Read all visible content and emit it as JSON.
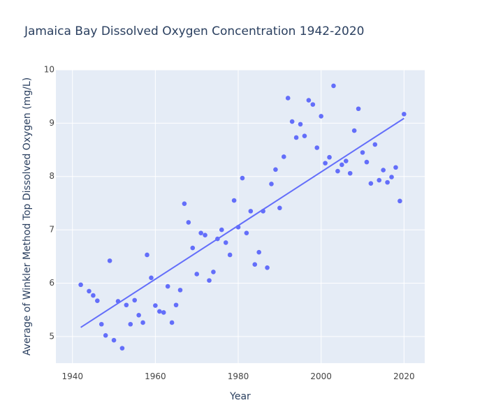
{
  "chart_data": {
    "type": "scatter",
    "title": "Jamaica Bay Dissolved Oxygen Concentration 1942-2020",
    "xlabel": "Year",
    "ylabel": "Average of Winkler Method Top Dissolved Oxygen (mg/L)",
    "xlim": [
      1936,
      2025
    ],
    "ylim": [
      4.5,
      10
    ],
    "xticks": [
      1940,
      1960,
      1980,
      2000,
      2020
    ],
    "yticks": [
      5,
      6,
      7,
      8,
      9,
      10
    ],
    "grid": true,
    "legend": "none",
    "colors": {
      "marker": "#636efa",
      "trendline": "#636efa",
      "plot_bg": "#e5ecf6",
      "grid": "#ffffff"
    },
    "series": [
      {
        "type": "scatter",
        "points": [
          [
            1942,
            5.97
          ],
          [
            1944,
            5.85
          ],
          [
            1945,
            5.77
          ],
          [
            1946,
            5.67
          ],
          [
            1947,
            5.23
          ],
          [
            1948,
            5.02
          ],
          [
            1949,
            6.42
          ],
          [
            1950,
            4.93
          ],
          [
            1951,
            5.66
          ],
          [
            1952,
            4.78
          ],
          [
            1953,
            5.59
          ],
          [
            1954,
            5.23
          ],
          [
            1955,
            5.68
          ],
          [
            1956,
            5.4
          ],
          [
            1957,
            5.26
          ],
          [
            1958,
            6.53
          ],
          [
            1959,
            6.1
          ],
          [
            1960,
            5.58
          ],
          [
            1961,
            5.47
          ],
          [
            1962,
            5.45
          ],
          [
            1963,
            5.94
          ],
          [
            1964,
            5.26
          ],
          [
            1965,
            5.59
          ],
          [
            1966,
            5.87
          ],
          [
            1967,
            7.49
          ],
          [
            1968,
            7.14
          ],
          [
            1969,
            6.66
          ],
          [
            1970,
            6.17
          ],
          [
            1971,
            6.94
          ],
          [
            1972,
            6.9
          ],
          [
            1973,
            6.05
          ],
          [
            1974,
            6.21
          ],
          [
            1975,
            6.83
          ],
          [
            1976,
            7.0
          ],
          [
            1977,
            6.76
          ],
          [
            1978,
            6.53
          ],
          [
            1979,
            7.55
          ],
          [
            1980,
            7.05
          ],
          [
            1981,
            7.97
          ],
          [
            1982,
            6.94
          ],
          [
            1983,
            7.35
          ],
          [
            1984,
            6.35
          ],
          [
            1985,
            6.58
          ],
          [
            1986,
            7.35
          ],
          [
            1987,
            6.29
          ],
          [
            1988,
            7.86
          ],
          [
            1989,
            8.13
          ],
          [
            1990,
            7.41
          ],
          [
            1991,
            8.37
          ],
          [
            1992,
            9.47
          ],
          [
            1993,
            9.03
          ],
          [
            1994,
            8.73
          ],
          [
            1995,
            8.98
          ],
          [
            1996,
            8.76
          ],
          [
            1997,
            9.43
          ],
          [
            1998,
            9.35
          ],
          [
            1999,
            8.54
          ],
          [
            2000,
            9.13
          ],
          [
            2001,
            8.25
          ],
          [
            2002,
            8.36
          ],
          [
            2003,
            9.7
          ],
          [
            2004,
            8.1
          ],
          [
            2005,
            8.22
          ],
          [
            2006,
            8.29
          ],
          [
            2007,
            8.06
          ],
          [
            2008,
            8.86
          ],
          [
            2009,
            9.27
          ],
          [
            2010,
            8.45
          ],
          [
            2011,
            8.27
          ],
          [
            2012,
            7.87
          ],
          [
            2013,
            8.6
          ],
          [
            2014,
            7.93
          ],
          [
            2015,
            8.12
          ],
          [
            2016,
            7.89
          ],
          [
            2017,
            7.99
          ],
          [
            2018,
            8.17
          ],
          [
            2019,
            7.54
          ],
          [
            2020,
            9.17
          ]
        ]
      },
      {
        "type": "line",
        "points": [
          [
            1942,
            5.17
          ],
          [
            2020,
            9.09
          ]
        ]
      }
    ]
  }
}
